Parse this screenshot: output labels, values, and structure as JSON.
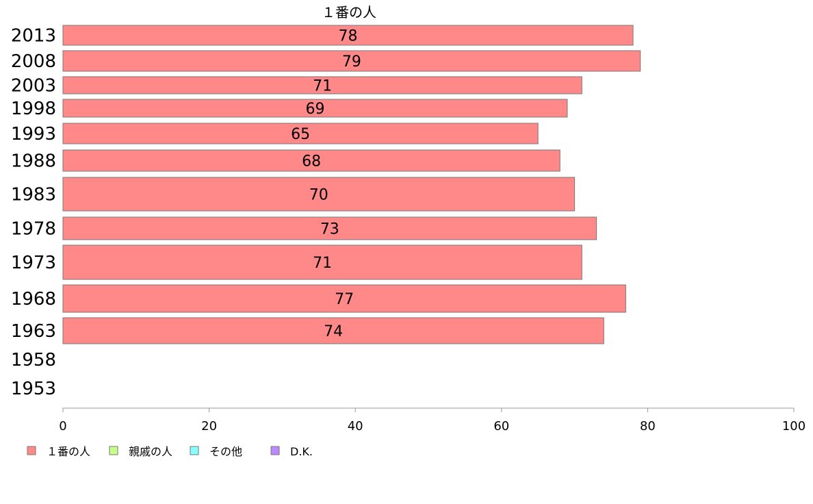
{
  "chart_data": {
    "type": "bar",
    "orientation": "horizontal",
    "series_title": "１番の人",
    "categories": [
      "2013",
      "2008",
      "2003",
      "1998",
      "1993",
      "1988",
      "1983",
      "1978",
      "1973",
      "1968",
      "1963",
      "1958",
      "1953"
    ],
    "series": [
      {
        "name": "１番の人",
        "color": "#ff8888",
        "values": [
          78,
          79,
          71,
          69,
          65,
          68,
          70,
          73,
          71,
          77,
          74,
          null,
          null
        ]
      }
    ],
    "xlim": [
      0,
      100
    ],
    "xticks": [
      0,
      20,
      40,
      60,
      80,
      100
    ],
    "grid": false,
    "legend_position": "bottom-left",
    "legend": [
      {
        "label": "１番の人",
        "color": "#ff8888"
      },
      {
        "label": "親戚の人",
        "color": "#c8ff88"
      },
      {
        "label": "その他",
        "color": "#88ffff"
      },
      {
        "label": "D.K.",
        "color": "#bb88ff"
      }
    ]
  }
}
